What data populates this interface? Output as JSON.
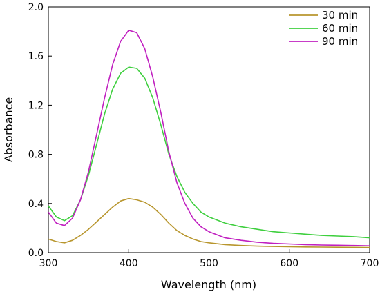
{
  "chart_data": {
    "type": "line",
    "title": "",
    "xlabel": "Wavelength (nm)",
    "ylabel": "Absorbance",
    "xlim": [
      300,
      700
    ],
    "ylim": [
      0.0,
      2.0
    ],
    "xticks": [
      300,
      400,
      500,
      600,
      700
    ],
    "yticks": [
      "0.0",
      "0.4",
      "0.8",
      "1.2",
      "1.6",
      "2.0"
    ],
    "grid": false,
    "legend_position": "top-right",
    "series": [
      {
        "name": "30 min",
        "color": "#b8962e",
        "x": [
          300,
          310,
          320,
          330,
          340,
          350,
          360,
          370,
          380,
          390,
          400,
          410,
          420,
          430,
          440,
          450,
          460,
          470,
          480,
          490,
          500,
          520,
          540,
          560,
          580,
          600,
          620,
          640,
          660,
          680,
          700
        ],
        "y": [
          0.11,
          0.09,
          0.08,
          0.1,
          0.14,
          0.19,
          0.25,
          0.31,
          0.37,
          0.42,
          0.44,
          0.43,
          0.41,
          0.37,
          0.31,
          0.24,
          0.18,
          0.14,
          0.11,
          0.09,
          0.08,
          0.065,
          0.058,
          0.053,
          0.05,
          0.048,
          0.046,
          0.045,
          0.044,
          0.043,
          0.042
        ]
      },
      {
        "name": "60 min",
        "color": "#3ecf3e",
        "x": [
          300,
          310,
          320,
          330,
          340,
          350,
          360,
          370,
          380,
          390,
          400,
          410,
          420,
          430,
          440,
          450,
          460,
          470,
          480,
          490,
          500,
          520,
          540,
          560,
          580,
          600,
          620,
          640,
          660,
          680,
          700
        ],
        "y": [
          0.38,
          0.29,
          0.26,
          0.3,
          0.43,
          0.63,
          0.88,
          1.13,
          1.33,
          1.46,
          1.51,
          1.5,
          1.42,
          1.26,
          1.04,
          0.8,
          0.62,
          0.49,
          0.4,
          0.33,
          0.29,
          0.24,
          0.21,
          0.19,
          0.17,
          0.16,
          0.15,
          0.14,
          0.135,
          0.13,
          0.12
        ]
      },
      {
        "name": "90 min",
        "color": "#c020c0",
        "x": [
          300,
          310,
          320,
          330,
          340,
          350,
          360,
          370,
          380,
          390,
          400,
          410,
          420,
          430,
          440,
          450,
          460,
          470,
          480,
          490,
          500,
          520,
          540,
          560,
          580,
          600,
          620,
          640,
          660,
          680,
          700
        ],
        "y": [
          0.33,
          0.24,
          0.22,
          0.28,
          0.43,
          0.66,
          0.96,
          1.26,
          1.53,
          1.72,
          1.81,
          1.79,
          1.66,
          1.43,
          1.14,
          0.82,
          0.57,
          0.4,
          0.28,
          0.21,
          0.17,
          0.12,
          0.1,
          0.085,
          0.075,
          0.07,
          0.065,
          0.062,
          0.06,
          0.058,
          0.055
        ]
      }
    ]
  }
}
